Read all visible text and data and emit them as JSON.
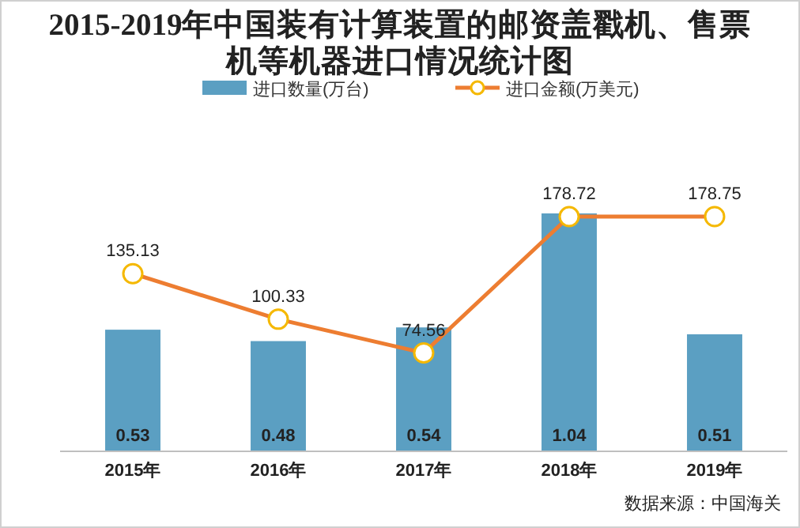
{
  "chart_data": {
    "type": "bar",
    "title": "2015-2019年中国装有计算装置的邮资盖戳机、售票机等机器进口情况统计图",
    "categories": [
      "2015年",
      "2016年",
      "2017年",
      "2018年",
      "2019年"
    ],
    "series": [
      {
        "name": "进口数量(万台)",
        "color": "#5b9fc2",
        "values": [
          0.53,
          0.48,
          0.54,
          1.04,
          0.51
        ]
      },
      {
        "name": "进口金额(万美元)",
        "type": "line",
        "axis": "y2",
        "color": "#ed7d31",
        "marker": "circle",
        "values": [
          135.13,
          100.33,
          74.56,
          178.72,
          178.75
        ]
      }
    ],
    "data_labels": true,
    "legend": "top",
    "annotations": [
      "数据来源：中国海关"
    ]
  }
}
